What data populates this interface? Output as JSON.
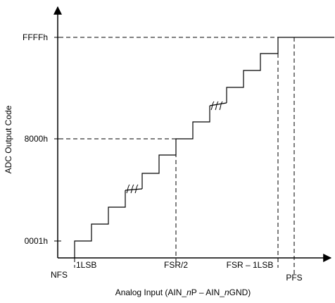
{
  "diagram": {
    "y_axis_label": "ADC Output Code",
    "x_axis_label": "Analog Input (AIN_nP – AIN_nGND)",
    "y_ticks": [
      "FFFFh",
      "8000h",
      "0001h"
    ],
    "x_ticks": {
      "nfs": "NFS",
      "one_lsb": "1LSB",
      "fsr_half": "FSR/2",
      "fsr_minus_lsb": "FSR – 1LSB",
      "pfs": "PFS"
    },
    "x_axis_parts": {
      "prefix": "Analog Input (AIN_",
      "n1": "n",
      "mid": "P – AIN_",
      "n2": "n",
      "suffix": "GND)"
    }
  }
}
